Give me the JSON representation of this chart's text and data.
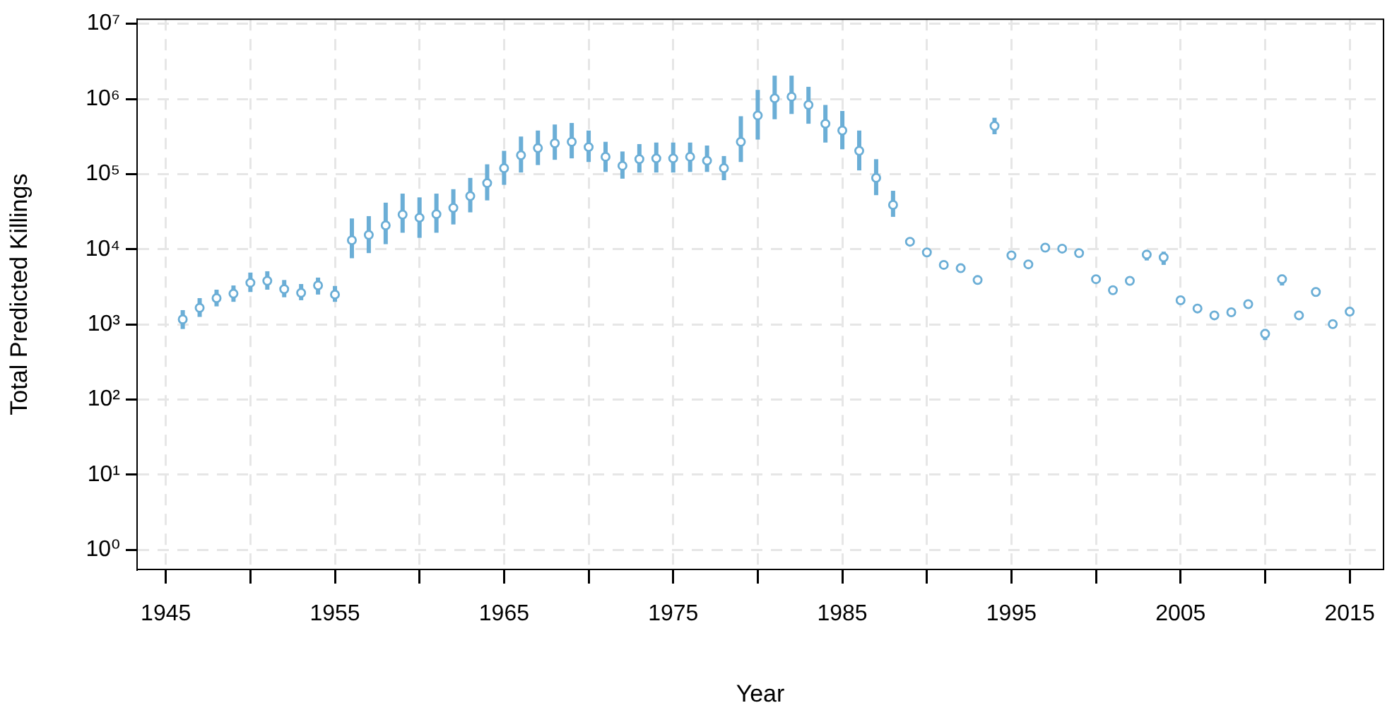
{
  "chart_data": {
    "type": "scatter",
    "xlabel": "Year",
    "ylabel": "Total Predicted Killings",
    "log": "y",
    "grid": true,
    "legend": false,
    "marker": "circle",
    "xlim": [
      1943.3,
      2017
    ],
    "ylim": [
      0.55,
      11500000
    ],
    "xticks": [
      1945,
      {
        "value": 1950,
        "label": null
      },
      1955,
      {
        "value": 1960,
        "label": null
      },
      1965,
      {
        "value": 1970,
        "label": null
      },
      1975,
      {
        "value": 1980,
        "label": null
      },
      1985,
      {
        "value": 1990,
        "label": null
      },
      1995,
      {
        "value": 2000,
        "label": null
      },
      2005,
      {
        "value": 2010,
        "label": null
      },
      2015
    ],
    "yticks": [
      {
        "value": 1,
        "label": "10⁰"
      },
      {
        "value": 10,
        "label": "10¹"
      },
      {
        "value": 100,
        "label": "10²"
      },
      {
        "value": 1000,
        "label": "10³"
      },
      {
        "value": 10000,
        "label": "10⁴"
      },
      {
        "value": 100000,
        "label": "10⁵"
      },
      {
        "value": 1000000,
        "label": "10⁶"
      },
      {
        "value": 10000000,
        "label": "10⁷"
      }
    ],
    "series": [
      {
        "color": "#6baed6",
        "x": [
          1946,
          1947,
          1948,
          1949,
          1950,
          1951,
          1952,
          1953,
          1954,
          1955,
          1956,
          1957,
          1958,
          1959,
          1960,
          1961,
          1962,
          1963,
          1964,
          1965,
          1966,
          1967,
          1968,
          1969,
          1970,
          1971,
          1972,
          1973,
          1974,
          1975,
          1976,
          1977,
          1978,
          1979,
          1980,
          1981,
          1982,
          1983,
          1984,
          1985,
          1986,
          1987,
          1988,
          1989,
          1990,
          1991,
          1992,
          1993,
          1994,
          1995,
          1996,
          1997,
          1998,
          1999,
          2000,
          2001,
          2002,
          2003,
          2004,
          2005,
          2006,
          2007,
          2008,
          2009,
          2010,
          2011,
          2012,
          2013,
          2014,
          2015
        ],
        "values": [
          1170,
          1660,
          2240,
          2570,
          3590,
          3800,
          2950,
          2630,
          3300,
          2500,
          13200,
          15500,
          20800,
          28900,
          26300,
          29300,
          35500,
          51000,
          76000,
          120000,
          178000,
          222000,
          257000,
          269000,
          229000,
          170000,
          129000,
          158000,
          162000,
          162000,
          170000,
          151000,
          120000,
          269000,
          603000,
          1020000,
          1070000,
          832000,
          468000,
          380000,
          204000,
          89000,
          39000,
          12600,
          9100,
          6200,
          5600,
          3900,
          437000,
          8300,
          6300,
          10500,
          10200,
          8900,
          4000,
          2850,
          3800,
          8500,
          7800,
          2100,
          1630,
          1320,
          1450,
          1860,
          750,
          4000,
          1320,
          2700,
          1010,
          1480
        ],
        "errors": [
          [
            870,
            1550
          ],
          [
            1260,
            2240
          ],
          [
            1740,
            2900
          ],
          [
            2000,
            3300
          ],
          [
            2700,
            4900
          ],
          [
            2900,
            5100
          ],
          [
            2300,
            3900
          ],
          [
            2100,
            3450
          ],
          [
            2500,
            4200
          ],
          [
            2000,
            3250
          ],
          [
            7600,
            25700
          ],
          [
            8900,
            27600
          ],
          [
            11700,
            41700
          ],
          [
            16600,
            55000
          ],
          [
            14200,
            49000
          ],
          [
            16600,
            55000
          ],
          [
            21400,
            63000
          ],
          [
            31000,
            89000
          ],
          [
            44700,
            135000
          ],
          [
            72000,
            204000
          ],
          [
            105000,
            316000
          ],
          [
            132000,
            380000
          ],
          [
            155000,
            457000
          ],
          [
            162000,
            479000
          ],
          [
            145000,
            380000
          ],
          [
            107000,
            269000
          ],
          [
            87000,
            200000
          ],
          [
            105000,
            251000
          ],
          [
            105000,
            263000
          ],
          [
            105000,
            263000
          ],
          [
            107000,
            263000
          ],
          [
            107000,
            240000
          ],
          [
            83000,
            174000
          ],
          [
            145000,
            589000
          ],
          [
            288000,
            1320000
          ],
          [
            537000,
            2040000
          ],
          [
            631000,
            2040000
          ],
          [
            468000,
            1450000
          ],
          [
            263000,
            832000
          ],
          [
            214000,
            692000
          ],
          [
            112000,
            380000
          ],
          [
            52500,
            158000
          ],
          [
            27000,
            60000
          ],
          null,
          null,
          null,
          null,
          null,
          [
            339000,
            562000
          ],
          null,
          null,
          null,
          null,
          null,
          null,
          null,
          null,
          [
            7100,
            9700
          ],
          [
            6200,
            9300
          ],
          null,
          null,
          null,
          null,
          null,
          [
            620,
            870
          ],
          [
            3300,
            4600
          ],
          null,
          [
            2350,
            3100
          ],
          null,
          null
        ]
      }
    ]
  }
}
